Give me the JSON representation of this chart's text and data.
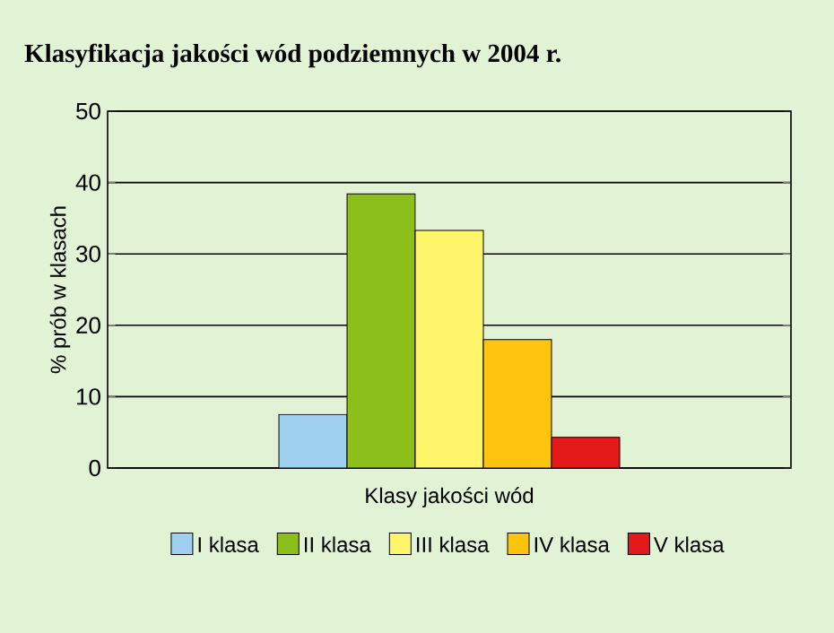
{
  "chart_data": {
    "type": "bar",
    "title": "Klasyfikacja jakości wód podziemnych w 2004 r.",
    "xlabel": "Klasy jakości wód",
    "ylabel": "% prób w klasach",
    "categories": [
      null
    ],
    "series": [
      {
        "name": "I klasa",
        "color": "#9fd0f0",
        "values": [
          7.5
        ]
      },
      {
        "name": "II klasa",
        "color": "#8cbf1a",
        "values": [
          38.4
        ]
      },
      {
        "name": "III klasa",
        "color": "#fff56a",
        "values": [
          33.3
        ]
      },
      {
        "name": "IV klasa",
        "color": "#fcc40c",
        "values": [
          18.0
        ]
      },
      {
        "name": "V klasa",
        "color": "#e41a1a",
        "values": [
          4.3
        ]
      }
    ],
    "ylim": [
      0,
      50
    ],
    "yticks": [
      0,
      10,
      20,
      30,
      40,
      50
    ],
    "grid": "y",
    "legend": "bottom"
  }
}
